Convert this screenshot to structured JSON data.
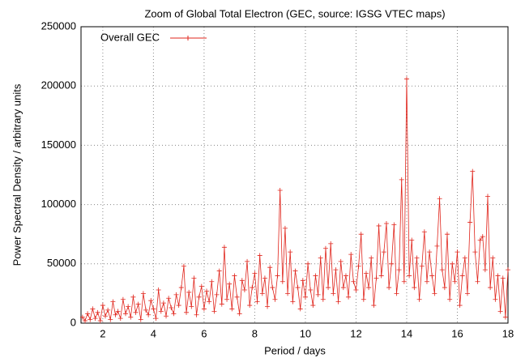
{
  "chart_data": {
    "type": "line",
    "title": "Zoom of Global Total Electron (GEC, source: IGSG VTEC maps)",
    "x_label": "Period / days",
    "y_label": "Power Spectral Density / arbitrary units",
    "xlim": [
      1.14,
      18
    ],
    "xticks": [
      2,
      4,
      6,
      8,
      10,
      12,
      14,
      16,
      18
    ],
    "ylim": [
      0,
      250000
    ],
    "yticks": [
      0,
      50000,
      100000,
      150000,
      200000,
      250000
    ],
    "grid": true,
    "legend": "top-left",
    "x": [
      1.2,
      1.3,
      1.4,
      1.5,
      1.6,
      1.7,
      1.8,
      1.9,
      2.0,
      2.1,
      2.2,
      2.3,
      2.4,
      2.5,
      2.6,
      2.7,
      2.8,
      2.9,
      3.0,
      3.1,
      3.2,
      3.3,
      3.4,
      3.5,
      3.6,
      3.7,
      3.8,
      3.9,
      4.0,
      4.1,
      4.2,
      4.3,
      4.4,
      4.5,
      4.6,
      4.7,
      4.8,
      4.9,
      5.0,
      5.1,
      5.2,
      5.3,
      5.4,
      5.5,
      5.6,
      5.7,
      5.8,
      5.9,
      6.0,
      6.1,
      6.2,
      6.3,
      6.4,
      6.5,
      6.6,
      6.7,
      6.8,
      6.9,
      7.0,
      7.1,
      7.2,
      7.3,
      7.4,
      7.5,
      7.6,
      7.7,
      7.8,
      7.9,
      8.0,
      8.1,
      8.2,
      8.3,
      8.4,
      8.5,
      8.6,
      8.7,
      8.8,
      8.9,
      9.0,
      9.1,
      9.2,
      9.3,
      9.4,
      9.5,
      9.6,
      9.7,
      9.8,
      9.9,
      10.0,
      10.1,
      10.2,
      10.3,
      10.4,
      10.5,
      10.6,
      10.7,
      10.8,
      10.9,
      11.0,
      11.1,
      11.2,
      11.3,
      11.4,
      11.5,
      11.6,
      11.7,
      11.8,
      11.9,
      12.0,
      12.1,
      12.2,
      12.3,
      12.4,
      12.5,
      12.6,
      12.7,
      12.8,
      12.9,
      13.0,
      13.1,
      13.2,
      13.3,
      13.4,
      13.5,
      13.6,
      13.7,
      13.8,
      13.9,
      14.0,
      14.1,
      14.2,
      14.3,
      14.4,
      14.5,
      14.6,
      14.7,
      14.8,
      14.9,
      15.0,
      15.1,
      15.2,
      15.3,
      15.4,
      15.5,
      15.6,
      15.7,
      15.8,
      15.9,
      16.0,
      16.1,
      16.2,
      16.3,
      16.4,
      16.5,
      16.6,
      16.7,
      16.8,
      16.9,
      17.0,
      17.1,
      17.2,
      17.3,
      17.4,
      17.5,
      17.6,
      17.7,
      17.8,
      17.9,
      18.0
    ],
    "series": [
      {
        "name": "Overall GEC",
        "color": "#e0241b",
        "values": [
          5000,
          2000,
          8000,
          3000,
          12000,
          4000,
          9000,
          2000,
          15000,
          6000,
          11000,
          3000,
          18000,
          7000,
          10000,
          4000,
          20000,
          8000,
          14000,
          5000,
          22000,
          9000,
          16000,
          3000,
          25000,
          11000,
          7000,
          19000,
          12000,
          4000,
          28000,
          10000,
          17000,
          6000,
          21000,
          13000,
          8000,
          24000,
          15000,
          30000,
          48000,
          9000,
          26000,
          14000,
          38000,
          7000,
          22000,
          31000,
          12000,
          27000,
          18000,
          35000,
          10000,
          24000,
          44000,
          16000,
          64000,
          20000,
          33000,
          12000,
          40000,
          22000,
          8000,
          36000,
          28000,
          52000,
          15000,
          30000,
          42000,
          18000,
          57000,
          25000,
          38000,
          14000,
          47000,
          30000,
          20000,
          40000,
          112000,
          35000,
          80000,
          25000,
          60000,
          18000,
          44000,
          30000,
          12000,
          36000,
          22000,
          50000,
          28000,
          15000,
          40000,
          24000,
          55000,
          20000,
          63000,
          30000,
          67000,
          25000,
          45000,
          18000,
          52000,
          30000,
          40000,
          22000,
          58000,
          35000,
          28000,
          48000,
          75000,
          20000,
          42000,
          30000,
          55000,
          15000,
          38000,
          82000,
          40000,
          60000,
          84000,
          30000,
          50000,
          83000,
          25000,
          45000,
          121000,
          35000,
          206000,
          40000,
          70000,
          30000,
          55000,
          20000,
          48000,
          77000,
          35000,
          60000,
          40000,
          25000,
          65000,
          105000,
          45000,
          30000,
          75000,
          20000,
          50000,
          35000,
          60000,
          15000,
          40000,
          55000,
          25000,
          85000,
          128000,
          60000,
          35000,
          70000,
          73000,
          45000,
          107000,
          30000,
          55000,
          20000,
          40000,
          10000,
          38000,
          5000,
          45000
        ]
      }
    ]
  }
}
